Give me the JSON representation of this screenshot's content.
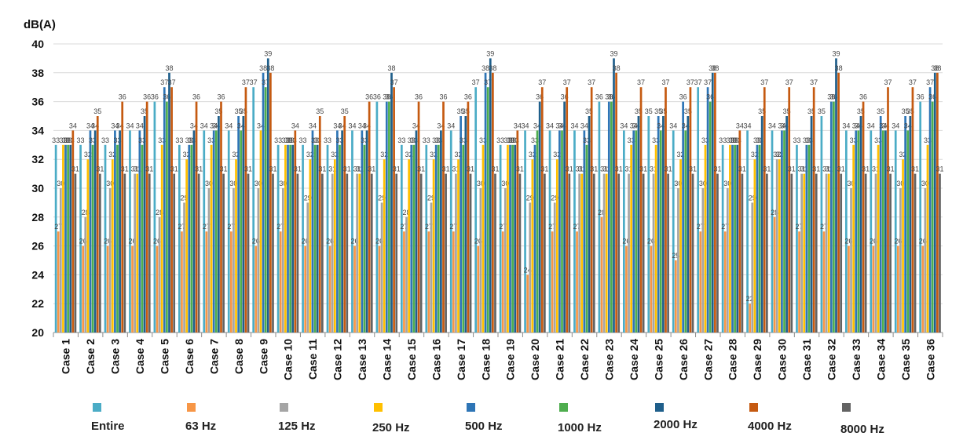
{
  "chart_data": {
    "type": "bar",
    "ylabel": "dB(A)",
    "ylim": [
      20,
      40
    ],
    "yticks": [
      20,
      22,
      24,
      26,
      28,
      30,
      32,
      34,
      36,
      38,
      40
    ],
    "grid": true,
    "legend_position": "bottom",
    "categories": [
      "Case 1",
      "Case 2",
      "Case 3",
      "Case 4",
      "Case 5",
      "Case 6",
      "Case 7",
      "Case 8",
      "Case 9",
      "Case 10",
      "Case 11",
      "Case 12",
      "Case 13",
      "Case 14",
      "Case 15",
      "Case 16",
      "Case 17",
      "Case 18",
      "Case 19",
      "Case 20",
      "Case 21",
      "Case 22",
      "Case 23",
      "Case 24",
      "Case 25",
      "Case 26",
      "Case 27",
      "Case 28",
      "Case 29",
      "Case 30",
      "Case 31",
      "Case 32",
      "Case 33",
      "Case 34",
      "Case 35",
      "Case 36"
    ],
    "series": [
      {
        "name": "Entire",
        "color": "#4bacc6",
        "values": [
          33,
          33,
          33,
          34,
          36,
          33,
          34,
          34,
          37,
          33,
          33,
          33,
          34,
          36,
          33,
          33,
          34,
          37,
          33,
          34,
          34,
          34,
          36,
          34,
          35,
          34,
          37,
          33,
          34,
          34,
          33,
          35,
          34,
          34,
          34,
          36
        ]
      },
      {
        "name": "63 Hz",
        "color": "#f79646",
        "values": [
          27,
          26,
          26,
          26,
          26,
          27,
          27,
          27,
          26,
          27,
          26,
          26,
          26,
          26,
          27,
          27,
          27,
          26,
          27,
          24,
          27,
          27,
          28,
          26,
          26,
          25,
          27,
          27,
          22,
          28,
          27,
          27,
          26,
          26,
          26,
          26
        ]
      },
      {
        "name": "125 Hz",
        "color": "#a5a5a5",
        "values": [
          30,
          28,
          30,
          31,
          28,
          29,
          30,
          30,
          30,
          30,
          29,
          31,
          31,
          29,
          28,
          29,
          31,
          30,
          30,
          29,
          29,
          31,
          31,
          31,
          31,
          30,
          30,
          30,
          29,
          32,
          31,
          31,
          30,
          31,
          30,
          30
        ]
      },
      {
        "name": "250 Hz",
        "color": "#ffc000",
        "values": [
          33,
          32,
          32,
          31,
          33,
          32,
          33,
          32,
          34,
          33,
          32,
          32,
          31,
          32,
          32,
          32,
          32,
          33,
          33,
          32,
          32,
          31,
          31,
          33,
          33,
          32,
          33,
          33,
          32,
          32,
          31,
          31,
          33,
          33,
          32,
          33
        ]
      },
      {
        "name": "500 Hz",
        "color": "#2e75b6",
        "values": [
          33,
          34,
          34,
          34,
          37,
          33,
          34,
          35,
          38,
          33,
          34,
          34,
          34,
          36,
          33,
          33,
          35,
          38,
          33,
          33,
          34,
          34,
          36,
          34,
          35,
          36,
          37,
          33,
          33,
          34,
          33,
          36,
          34,
          35,
          35,
          37
        ]
      },
      {
        "name": "1000 Hz",
        "color": "#4ead4e",
        "values": [
          33,
          33,
          33,
          33,
          36,
          33,
          34,
          34,
          37,
          33,
          33,
          33,
          33,
          36,
          33,
          33,
          33,
          37,
          33,
          34,
          34,
          33,
          36,
          34,
          34,
          34,
          36,
          33,
          33,
          34,
          33,
          36,
          34,
          34,
          34,
          36
        ]
      },
      {
        "name": "2000 Hz",
        "color": "#1f5f8b",
        "values": [
          33,
          34,
          34,
          35,
          38,
          34,
          35,
          35,
          39,
          33,
          33,
          34,
          34,
          38,
          34,
          34,
          35,
          39,
          33,
          36,
          36,
          35,
          39,
          35,
          35,
          35,
          38,
          33,
          35,
          35,
          35,
          39,
          35,
          34,
          35,
          38
        ]
      },
      {
        "name": "4000 Hz",
        "color": "#c55a11",
        "values": [
          34,
          35,
          36,
          36,
          37,
          36,
          36,
          37,
          38,
          34,
          35,
          35,
          36,
          37,
          36,
          36,
          36,
          38,
          34,
          37,
          37,
          37,
          38,
          37,
          37,
          37,
          38,
          34,
          37,
          37,
          37,
          38,
          36,
          37,
          37,
          38
        ]
      },
      {
        "name": "8000 Hz",
        "color": "#636363",
        "values": [
          31,
          31,
          31,
          31,
          31,
          31,
          31,
          31,
          31,
          31,
          31,
          31,
          31,
          31,
          31,
          31,
          31,
          31,
          31,
          31,
          31,
          31,
          31,
          31,
          31,
          31,
          31,
          31,
          31,
          31,
          31,
          31,
          31,
          31,
          31,
          31
        ]
      }
    ]
  }
}
